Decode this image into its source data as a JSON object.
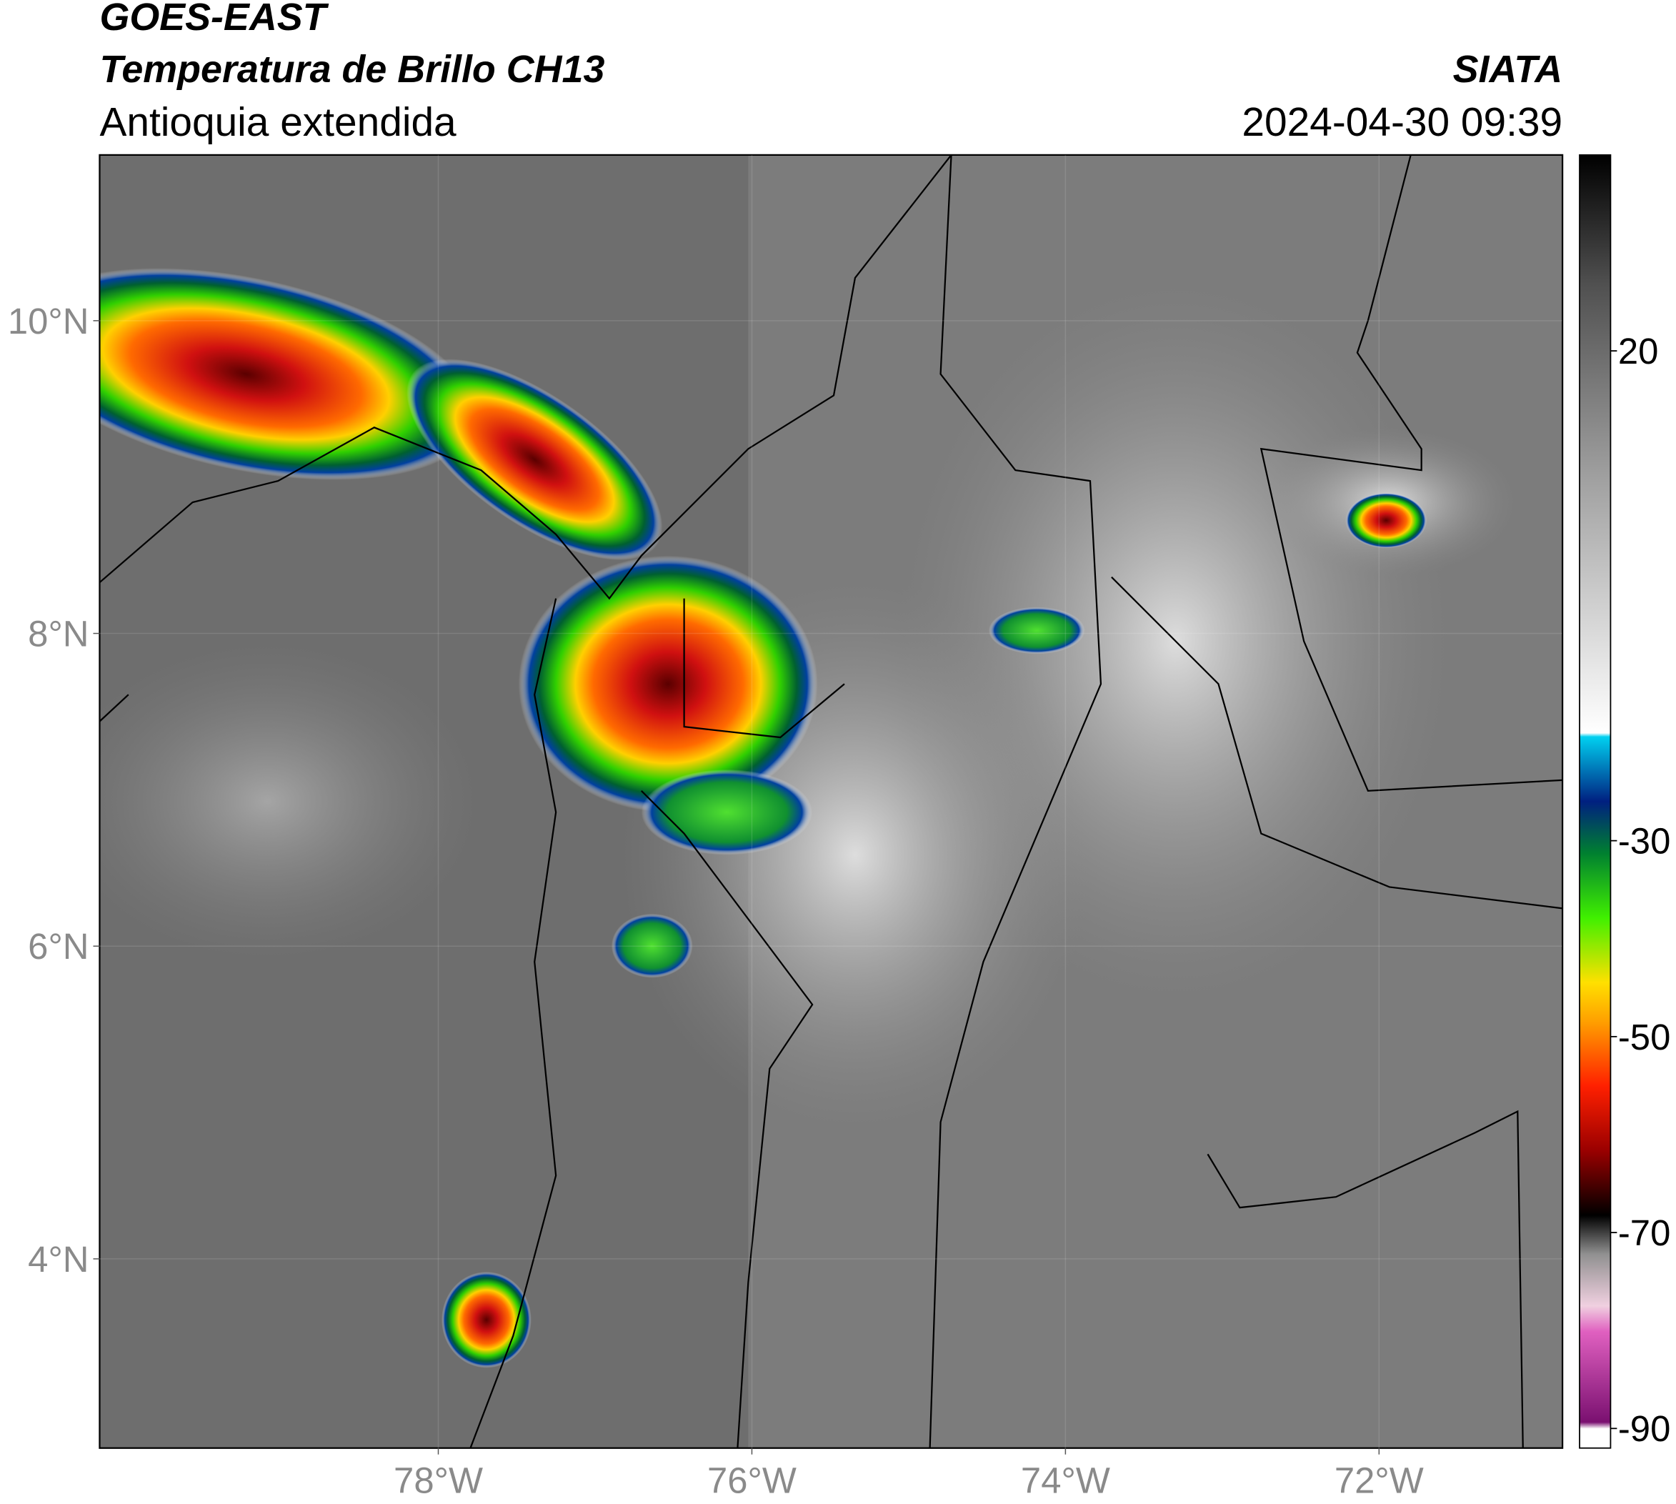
{
  "header": {
    "satellite": "GOES-EAST",
    "product": "Temperatura de Brillo CH13",
    "region": "Antioquia extendida",
    "source": "SIATA",
    "datetime": "2024-04-30 09:39"
  },
  "map": {
    "xlim": [
      -80.16,
      -70.83
    ],
    "ylim": [
      2.79,
      11.06
    ],
    "xticks": [
      {
        "value": -78,
        "label": "78°W"
      },
      {
        "value": -76,
        "label": "76°W"
      },
      {
        "value": -74,
        "label": "74°W"
      },
      {
        "value": -72,
        "label": "72°W"
      }
    ],
    "yticks": [
      {
        "value": 4,
        "label": "4°N"
      },
      {
        "value": 6,
        "label": "6°N"
      },
      {
        "value": 8,
        "label": "8°N"
      },
      {
        "value": 10,
        "label": "10°N"
      }
    ]
  },
  "colorbar": {
    "lim": [
      -92,
      40
    ],
    "ticks": [
      -90,
      -70,
      -50,
      -30,
      20
    ]
  }
}
